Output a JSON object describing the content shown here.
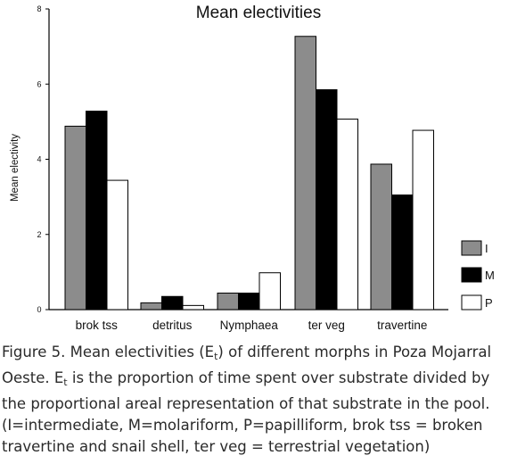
{
  "chart_data": {
    "type": "bar",
    "title": "Mean electivities",
    "xlabel": "",
    "ylabel": "Mean electivity",
    "ylim": [
      0,
      8
    ],
    "yticks": [
      0,
      2,
      4,
      6,
      8
    ],
    "categories": [
      "brok tss",
      "detritus",
      "Nymphaea",
      "ter veg",
      "travertine"
    ],
    "series": [
      {
        "name": "I",
        "color": "#8c8c8c",
        "values": [
          4.88,
          0.18,
          0.44,
          7.27,
          3.87
        ]
      },
      {
        "name": "M",
        "color": "#000000",
        "values": [
          5.28,
          0.35,
          0.44,
          5.85,
          3.05
        ]
      },
      {
        "name": "P",
        "color": "#ffffff",
        "values": [
          3.44,
          0.11,
          0.98,
          5.07,
          4.77
        ]
      }
    ],
    "grid": false,
    "legend": "right"
  },
  "caption": {
    "line1": "Figure 5. Mean electivities (E",
    "line1_sub": "t",
    "line1_end": ") of different morphs in Poza Mojarral",
    "line2_start": "Oeste. E",
    "line2_sub": "t",
    "line2_end": " is the proportion of time spent over substrate divided by",
    "line3": "the proportional areal representation of that substrate in the pool.",
    "line4": "(I=intermediate, M=molariform, P=papilliform, brok tss = broken",
    "line5": "travertine and snail shell, ter veg = terrestrial vegetation)"
  }
}
